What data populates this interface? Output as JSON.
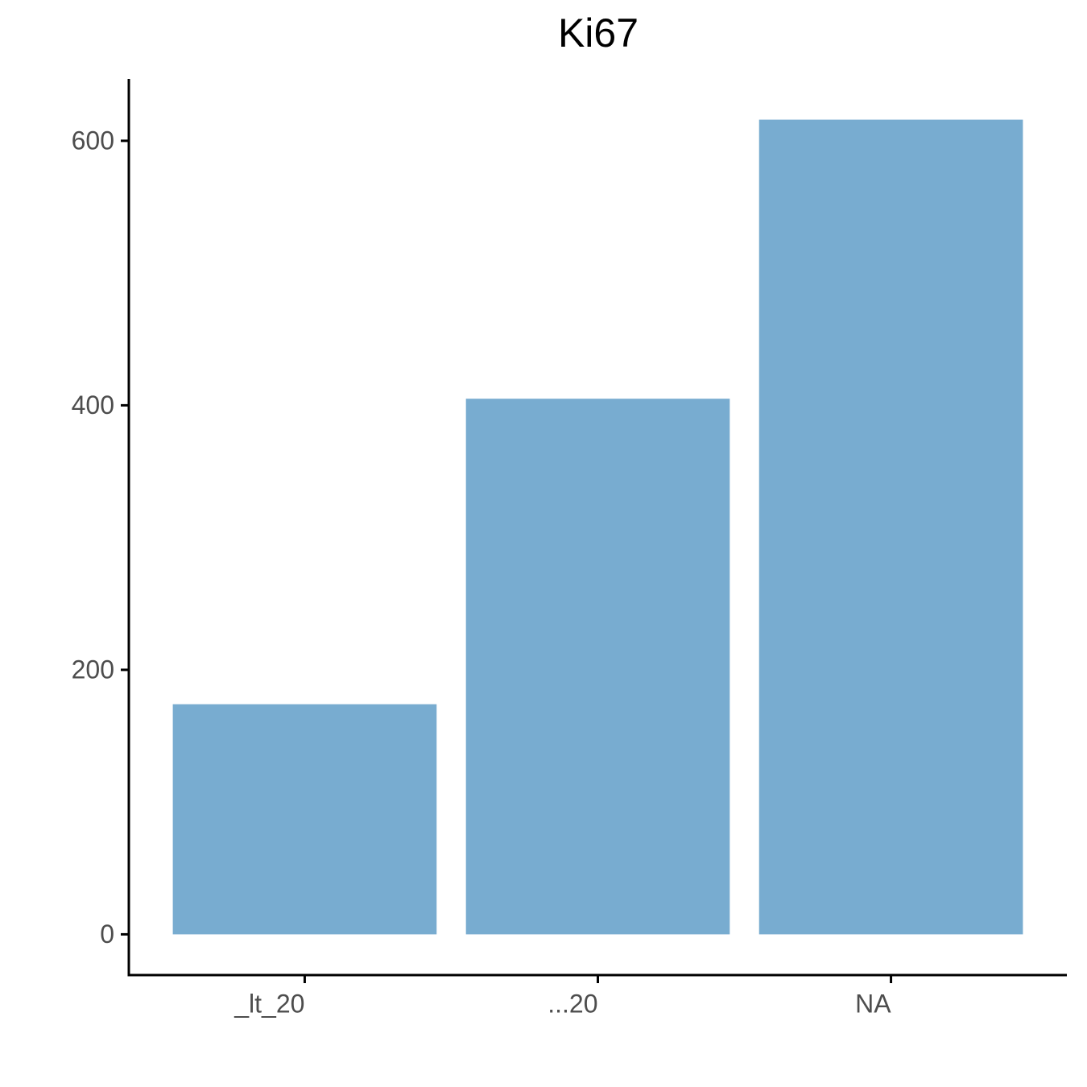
{
  "chart_data": {
    "type": "bar",
    "title": "Ki67",
    "categories": [
      "_lt_20",
      "...20",
      "NA"
    ],
    "values": [
      174,
      405,
      616
    ],
    "color": "#78acd0",
    "ylim": [
      -30.8,
      646.8
    ],
    "yticks": [
      0,
      200,
      400,
      600
    ],
    "grid": false
  }
}
